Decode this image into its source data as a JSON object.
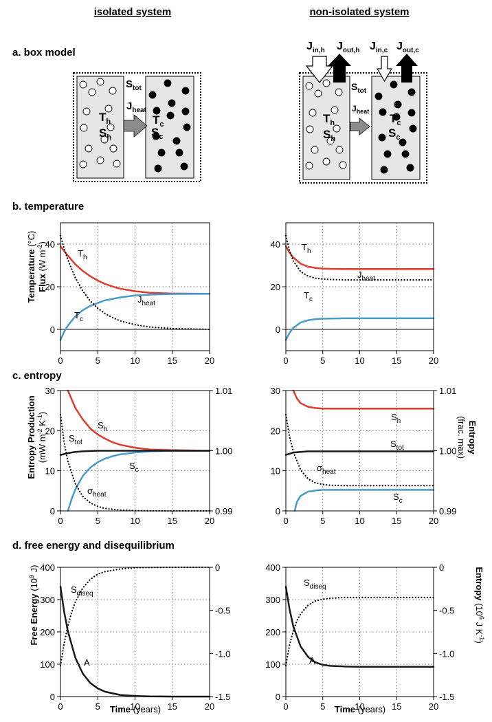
{
  "columns": {
    "isolated": "isolated system",
    "nonisolated": "non-isolated system"
  },
  "sections": {
    "a": "a. box model",
    "b": "b. temperature",
    "c": "c. entropy",
    "d": "d. free energy and disequilibrium"
  },
  "box_model": {
    "S_tot": "S",
    "S_tot_sub": "tot",
    "J_heat": "J",
    "J_heat_sub": "heat",
    "T_h": "T",
    "T_h_sub": "h",
    "S_h": "S",
    "S_h_sub": "h",
    "T_c": "T",
    "T_c_sub": "c",
    "S_c": "S",
    "S_c_sub": "c",
    "J_in_h": "J",
    "J_in_h_sub": "in,h",
    "J_out_h": "J",
    "J_out_h_sub": "out,h",
    "J_in_c": "J",
    "J_in_c_sub": "in,c",
    "J_out_c": "J",
    "J_out_c_sub": "out,c"
  },
  "axes": {
    "b_ylabel_bold": "Temperature",
    "b_ylabel_unit": " (°C)",
    "b_ylabel2_bold": "Flux",
    "b_ylabel2_unit": " (W m",
    "c_ylabel_bold": "Entropy Production",
    "c_ylabel_unit": "(mW m",
    "c_ylabel_unit_tail": " K",
    "c_y2label_bold": "Entropy",
    "c_y2label_unit": "(frac. max)",
    "d_ylabel_bold": "Free Energy",
    "d_ylabel_unit": " (10",
    "d_ylabel_unit_tail": " J)",
    "d_y2label_bold": "Entropy",
    "d_y2label_unit": " (10",
    "d_y2label_unit_tail": " J K",
    "xlabel_bold": "Time",
    "xlabel_unit": " (years)"
  },
  "chart_data": [
    {
      "id": "b-isolated",
      "type": "line",
      "xlim": [
        0,
        20
      ],
      "ylim": [
        -10,
        50
      ],
      "xticks": [
        0,
        5,
        10,
        15,
        20
      ],
      "yticks": [
        0,
        20,
        40
      ],
      "series": [
        {
          "name": "T_h",
          "color": "#e03b2c",
          "style": "solid",
          "x": [
            0,
            1,
            2,
            3,
            4,
            5,
            6,
            7,
            8,
            10,
            12,
            15,
            20
          ],
          "y": [
            39,
            34.5,
            30.5,
            27.4,
            24.9,
            22.9,
            21.3,
            20.1,
            19.1,
            17.9,
            17.2,
            16.8,
            16.7
          ]
        },
        {
          "name": "T_c",
          "color": "#4a9ac9",
          "style": "solid",
          "x": [
            0,
            0.5,
            1,
            2,
            3,
            4,
            5,
            6,
            8,
            10,
            12,
            15,
            20
          ],
          "y": [
            -5,
            -1.1,
            1.8,
            6.1,
            9.0,
            11.0,
            12.4,
            13.6,
            15.0,
            15.9,
            16.3,
            16.6,
            16.7
          ]
        },
        {
          "name": "J_heat",
          "color": "#000000",
          "style": "dotted",
          "x": [
            0,
            0.5,
            1,
            2,
            3,
            4,
            5,
            6,
            7,
            8,
            10,
            12,
            15,
            20
          ],
          "y": [
            44,
            37.8,
            32.6,
            24.2,
            18.0,
            13.3,
            9.9,
            7.4,
            5.5,
            4.0,
            2.2,
            1.1,
            0.4,
            0
          ]
        }
      ]
    },
    {
      "id": "b-nonisolated",
      "type": "line",
      "xlim": [
        0,
        20
      ],
      "ylim": [
        -10,
        50
      ],
      "xticks": [
        0,
        5,
        10,
        15,
        20
      ],
      "yticks": [
        0,
        20,
        40
      ],
      "series": [
        {
          "name": "T_h",
          "color": "#e03b2c",
          "style": "solid",
          "x": [
            0,
            0.5,
            1,
            2,
            3,
            4,
            5,
            6,
            8,
            10,
            15,
            20
          ],
          "y": [
            39,
            36,
            33.7,
            30.8,
            29.4,
            28.8,
            28.5,
            28.4,
            28.3,
            28.3,
            28.3,
            28.3
          ]
        },
        {
          "name": "T_c",
          "color": "#4a9ac9",
          "style": "solid",
          "x": [
            0,
            0.5,
            1,
            2,
            3,
            4,
            5,
            6,
            8,
            10,
            15,
            20
          ],
          "y": [
            -5,
            -1.6,
            0.7,
            3.2,
            4.3,
            4.8,
            5.0,
            5.1,
            5.2,
            5.2,
            5.2,
            5.2
          ]
        },
        {
          "name": "J_heat",
          "color": "#000000",
          "style": "dotted",
          "x": [
            0,
            0.5,
            1,
            2,
            3,
            4,
            5,
            6,
            8,
            10,
            15,
            20
          ],
          "y": [
            44,
            36.9,
            32.1,
            27.1,
            25,
            24,
            23.6,
            23.4,
            23.2,
            23.2,
            23.2,
            23.2
          ]
        }
      ]
    },
    {
      "id": "c-isolated",
      "type": "line",
      "xlim": [
        0,
        20
      ],
      "ylim": [
        0,
        30
      ],
      "y2lim": [
        0.99,
        1.01
      ],
      "xticks": [
        0,
        5,
        10,
        15,
        20
      ],
      "yticks": [
        0,
        10,
        20,
        30
      ],
      "y2ticks": [
        0.99,
        1.0,
        1.01
      ],
      "series": [
        {
          "name": "S_h",
          "axis": "right",
          "color": "#e03b2c",
          "style": "solid",
          "x": [
            1,
            2,
            3,
            4,
            5,
            6,
            7,
            8,
            10,
            12,
            15,
            20
          ],
          "y": [
            1.01,
            1.0071,
            1.0052,
            1.0037,
            1.0027,
            1.002,
            1.0014,
            1.001,
            1.0005,
            1.0002,
            1.0001,
            1.0
          ]
        },
        {
          "name": "S_c",
          "axis": "right",
          "color": "#4a9ac9",
          "style": "solid",
          "x": [
            1,
            1.5,
            2,
            3,
            4,
            5,
            6,
            7,
            8,
            10,
            12,
            15,
            20
          ],
          "y": [
            0.99,
            0.992,
            0.9936,
            0.9958,
            0.9972,
            0.9981,
            0.9987,
            0.9991,
            0.9994,
            0.9997,
            0.9999,
            1.0,
            1.0
          ]
        },
        {
          "name": "S_tot",
          "axis": "right",
          "color": "#1a1a1a",
          "style": "solid",
          "x": [
            0,
            1,
            2,
            3,
            4,
            5,
            8,
            10,
            15,
            20
          ],
          "y": [
            0.9993,
            0.9996,
            0.9998,
            0.9999,
            0.99995,
            1.0,
            1.0,
            1.0,
            1.0,
            1.0
          ]
        },
        {
          "name": "σ_heat",
          "axis": "left",
          "color": "#000000",
          "style": "dotted",
          "x": [
            0,
            0.5,
            1,
            2,
            3,
            4,
            5,
            6,
            8,
            10,
            12,
            15,
            20
          ],
          "y": [
            24,
            17,
            12.4,
            6.7,
            3.6,
            2.0,
            1.1,
            0.6,
            0.2,
            0.06,
            0.02,
            0,
            0
          ]
        }
      ]
    },
    {
      "id": "c-nonisolated",
      "type": "line",
      "xlim": [
        0,
        20
      ],
      "ylim": [
        0,
        30
      ],
      "y2lim": [
        0.99,
        1.01
      ],
      "xticks": [
        0,
        5,
        10,
        15,
        20
      ],
      "yticks": [
        0,
        10,
        20,
        30
      ],
      "y2ticks": [
        0.99,
        1.0,
        1.01
      ],
      "series": [
        {
          "name": "S_h",
          "axis": "right",
          "color": "#e03b2c",
          "style": "solid",
          "x": [
            1,
            1.5,
            2,
            3,
            4,
            5,
            6,
            8,
            10,
            15,
            20
          ],
          "y": [
            1.01,
            1.0087,
            1.0079,
            1.0073,
            1.0071,
            1.007,
            1.007,
            1.007,
            1.007,
            1.007,
            1.007
          ]
        },
        {
          "name": "S_c",
          "axis": "right",
          "color": "#4a9ac9",
          "style": "solid",
          "x": [
            1.2,
            1.5,
            2,
            3,
            4,
            5,
            6,
            8,
            10,
            15,
            20
          ],
          "y": [
            0.99,
            0.9915,
            0.9925,
            0.9932,
            0.9934,
            0.9935,
            0.9935,
            0.9935,
            0.9935,
            0.9935,
            0.9935
          ]
        },
        {
          "name": "S_tot",
          "axis": "right",
          "color": "#1a1a1a",
          "style": "solid",
          "x": [
            0,
            0.5,
            1,
            2,
            3,
            5,
            8,
            10,
            15,
            20
          ],
          "y": [
            0.9993,
            0.9995,
            0.9997,
            0.9998,
            0.9999,
            0.9999,
            0.9999,
            0.9999,
            0.9999,
            0.9999
          ]
        },
        {
          "name": "σ_heat",
          "axis": "left",
          "color": "#000000",
          "style": "dotted",
          "x": [
            0,
            0.5,
            1,
            2,
            3,
            4,
            5,
            6,
            8,
            10,
            15,
            20
          ],
          "y": [
            24,
            18.5,
            14.7,
            10.2,
            8.0,
            7.0,
            6.6,
            6.4,
            6.3,
            6.3,
            6.3,
            6.3
          ]
        }
      ]
    },
    {
      "id": "d-isolated",
      "type": "line",
      "xlim": [
        0,
        20
      ],
      "ylim": [
        0,
        400
      ],
      "y2lim": [
        -1.5,
        0
      ],
      "xticks": [
        0,
        5,
        10,
        15,
        20
      ],
      "yticks": [
        0,
        100,
        200,
        300,
        400
      ],
      "y2ticks": [
        0,
        -0.5,
        -1.0,
        -1.5
      ],
      "y2ticklabels": [
        "0",
        "-0.5",
        "-1.0",
        "-1.5"
      ],
      "series": [
        {
          "name": "A",
          "axis": "left",
          "color": "#1a1a1a",
          "style": "solid",
          "x": [
            0,
            0.5,
            1,
            2,
            3,
            4,
            5,
            6,
            8,
            10,
            12,
            15,
            20
          ],
          "y": [
            340,
            262,
            202,
            120,
            71,
            42,
            25,
            15,
            5,
            2,
            0.5,
            0,
            0
          ]
        },
        {
          "name": "S_diseq",
          "axis": "right",
          "color": "#000000",
          "style": "dotted",
          "x": [
            0,
            0.5,
            1,
            1.5,
            2,
            3,
            4,
            5,
            6,
            8,
            10,
            15,
            20
          ],
          "y": [
            -1.14,
            -0.88,
            -0.68,
            -0.52,
            -0.4,
            -0.24,
            -0.14,
            -0.08,
            -0.05,
            -0.02,
            -0.005,
            0,
            0
          ]
        }
      ]
    },
    {
      "id": "d-nonisolated",
      "type": "line",
      "xlim": [
        0,
        20
      ],
      "ylim": [
        0,
        400
      ],
      "y2lim": [
        -1.5,
        0
      ],
      "xticks": [
        0,
        5,
        10,
        15,
        20
      ],
      "yticks": [
        0,
        100,
        200,
        300,
        400
      ],
      "y2ticks": [
        0,
        -0.5,
        -1.0,
        -1.5
      ],
      "y2ticklabels": [
        "0",
        "-0.5",
        "-1.0",
        "-1.5"
      ],
      "series": [
        {
          "name": "A",
          "axis": "left",
          "color": "#1a1a1a",
          "style": "solid",
          "x": [
            0,
            0.5,
            1,
            2,
            3,
            4,
            5,
            6,
            8,
            10,
            15,
            20
          ],
          "y": [
            340,
            270,
            217,
            155,
            123,
            106,
            98,
            95,
            93,
            92,
            92,
            92
          ]
        },
        {
          "name": "S_diseq",
          "axis": "right",
          "color": "#000000",
          "style": "dotted",
          "x": [
            0,
            0.5,
            1,
            1.5,
            2,
            3,
            4,
            5,
            6,
            8,
            10,
            15,
            20
          ],
          "y": [
            -1.14,
            -0.9,
            -0.74,
            -0.62,
            -0.54,
            -0.44,
            -0.39,
            -0.37,
            -0.36,
            -0.35,
            -0.35,
            -0.35,
            -0.35
          ]
        }
      ]
    }
  ]
}
